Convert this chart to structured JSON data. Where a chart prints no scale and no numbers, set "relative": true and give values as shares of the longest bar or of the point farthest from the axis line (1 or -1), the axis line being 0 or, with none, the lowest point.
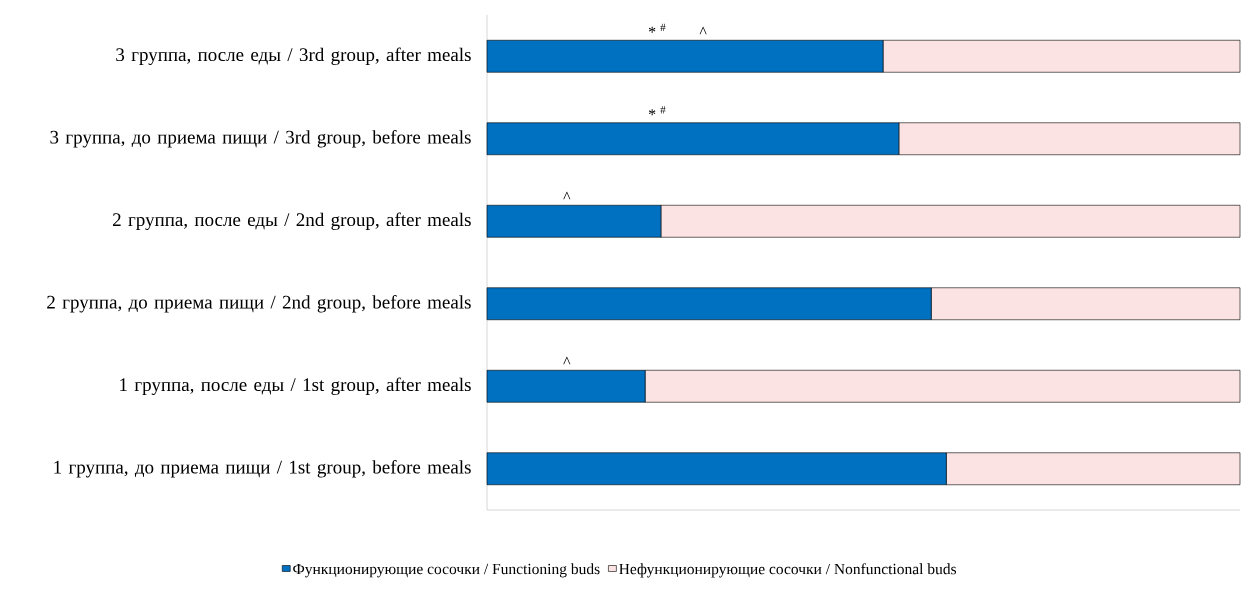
{
  "chart_data": {
    "type": "bar",
    "orientation": "horizontal",
    "stacked": true,
    "relative": true,
    "legend": "bottom",
    "categories": [
      "3 группа, после еды / 3rd group, after meals",
      "3 группа, до приема пищи / 3rd group, before meals",
      "2 группа, после еды / 2nd group, after meals",
      "2 группа, до приема пищи / 2nd group, before meals",
      "1 группа, после еды / 1st group, after meals",
      "1 группа, до приема пищи / 1st group, before meals"
    ],
    "series": [
      {
        "name": "Функционирующие сосочки / Functioning buds",
        "color": "#0070c0",
        "values": [
          0.526,
          0.547,
          0.231,
          0.59,
          0.21,
          0.61
        ]
      },
      {
        "name": "Нефункционирующие сосочки / Nonfunctional buds",
        "color": "#fbe3e3",
        "values": [
          0.474,
          0.453,
          0.769,
          0.41,
          0.79,
          0.39
        ]
      }
    ],
    "annotations": [
      "* $^{#}$",
      "^",
      "* $^{#}$",
      "^",
      "^"
    ]
  }
}
